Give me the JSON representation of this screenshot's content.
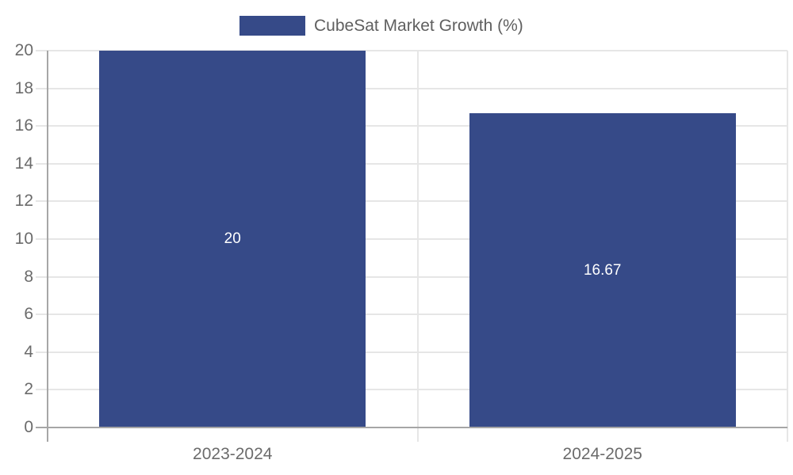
{
  "chart_data": {
    "type": "bar",
    "title": "",
    "legend_entries": [
      "CubeSat Market Growth (%)"
    ],
    "legend_position": "top-center",
    "categories": [
      "2023-2024",
      "2024-2025"
    ],
    "values": [
      20,
      16.67
    ],
    "bar_labels": [
      "20",
      "16.67"
    ],
    "xlabel": "",
    "ylabel": "",
    "ylim": [
      0,
      20
    ],
    "yticks": [
      0,
      2,
      4,
      6,
      8,
      10,
      12,
      14,
      16,
      18,
      20
    ],
    "grid": true,
    "colors": {
      "bar": "#364a88",
      "bar_label_text": "#ffffff",
      "grid_line": "#e6e6e6",
      "axis_line": "#a6a6a6",
      "tick_text": "#6b6b6b",
      "legend_text": "#5f5f5f",
      "background": "#ffffff"
    }
  }
}
